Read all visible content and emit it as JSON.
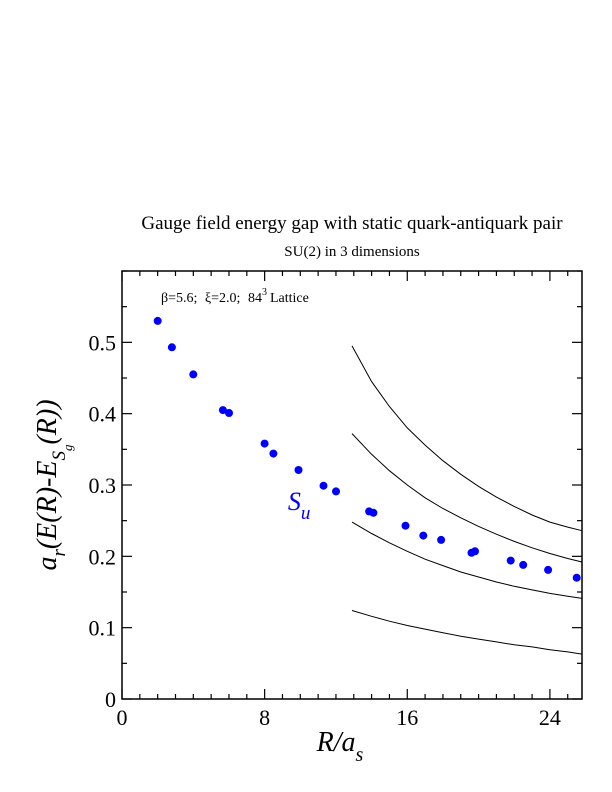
{
  "chart_data": {
    "type": "scatter",
    "title": "Gauge field energy gap with static quark-antiquark pair",
    "subtitle": "SU(2) in 3 dimensions",
    "annotation": {
      "beta": "β=5.6;",
      "xi": "ξ=2.0;",
      "lattice_base": "84",
      "lattice_exp": "3",
      "lattice_word": "Lattice"
    },
    "xlabel": {
      "main": "R/a",
      "sub": "s"
    },
    "ylabel": {
      "a": "a",
      "r": "r",
      "mid": "(E(R)-E",
      "S": "S",
      "g": "g",
      "end": "(R))"
    },
    "xlim": [
      0,
      25.8
    ],
    "ylim": [
      0,
      0.6
    ],
    "x_ticks": [
      0,
      8,
      16,
      24
    ],
    "x_tick_labels": [
      "0",
      "8",
      "16",
      "24"
    ],
    "y_ticks": [
      0,
      0.1,
      0.2,
      0.3,
      0.4,
      0.5
    ],
    "y_tick_labels": [
      "0",
      "0.1",
      "0.2",
      "0.3",
      "0.4",
      "0.5"
    ],
    "x_minor_step": 1,
    "y_minor_step": 0.05,
    "grid": false,
    "marker_color": "#0000ff",
    "series": [
      {
        "name": "S",
        "name_sub": "u",
        "label_position": {
          "x": 9.3,
          "y": 0.265
        },
        "x": [
          2.0,
          2.8,
          4.0,
          5.66,
          6.0,
          8.0,
          8.49,
          9.9,
          11.3,
          12.0,
          13.86,
          14.1,
          15.9,
          16.9,
          17.9,
          19.6,
          19.8,
          21.8,
          22.5,
          23.9,
          25.5
        ],
        "y": [
          0.53,
          0.493,
          0.455,
          0.405,
          0.401,
          0.358,
          0.344,
          0.321,
          0.299,
          0.291,
          0.263,
          0.261,
          0.243,
          0.229,
          0.223,
          0.205,
          0.207,
          0.194,
          0.188,
          0.181,
          0.17
        ]
      }
    ],
    "curves": [
      {
        "x": [
          12.9,
          14,
          15,
          16,
          17,
          18,
          19,
          20,
          21,
          22,
          23,
          24,
          25,
          25.8
        ],
        "y": [
          0.495,
          0.445,
          0.41,
          0.38,
          0.356,
          0.334,
          0.315,
          0.298,
          0.283,
          0.27,
          0.258,
          0.248,
          0.241,
          0.236
        ]
      },
      {
        "x": [
          12.9,
          14,
          15,
          16,
          17,
          18,
          19,
          20,
          21,
          22,
          23,
          24,
          25,
          25.8
        ],
        "y": [
          0.372,
          0.343,
          0.32,
          0.3,
          0.282,
          0.267,
          0.254,
          0.242,
          0.231,
          0.221,
          0.212,
          0.204,
          0.197,
          0.192
        ]
      },
      {
        "x": [
          12.9,
          14,
          15,
          16,
          17,
          18,
          19,
          20,
          21,
          22,
          23,
          24,
          25,
          25.8
        ],
        "y": [
          0.248,
          0.232,
          0.219,
          0.207,
          0.196,
          0.187,
          0.178,
          0.171,
          0.164,
          0.158,
          0.153,
          0.148,
          0.144,
          0.141
        ]
      },
      {
        "x": [
          12.9,
          14,
          15,
          16,
          17,
          18,
          19,
          20,
          21,
          22,
          23,
          24,
          25,
          25.8
        ],
        "y": [
          0.124,
          0.116,
          0.109,
          0.103,
          0.098,
          0.093,
          0.088,
          0.084,
          0.08,
          0.076,
          0.073,
          0.069,
          0.066,
          0.063
        ]
      }
    ]
  }
}
